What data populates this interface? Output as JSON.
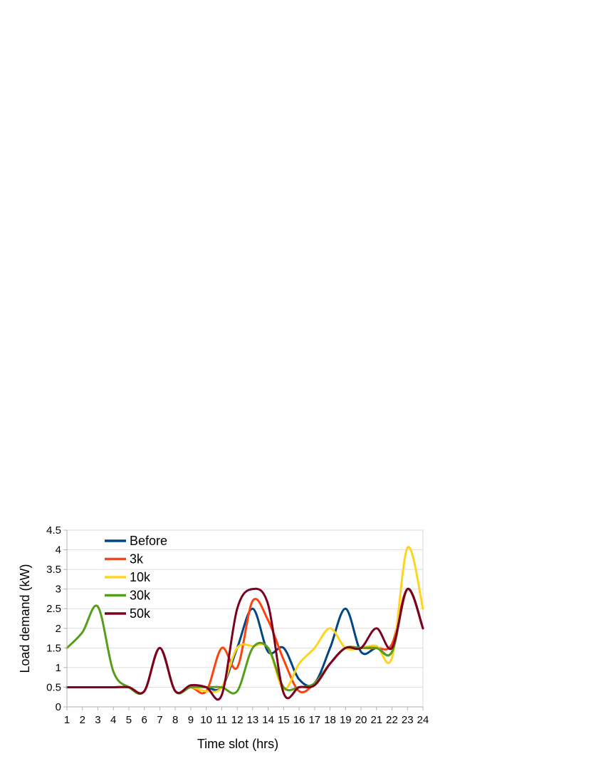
{
  "chart_data": {
    "type": "line",
    "x": [
      1,
      2,
      3,
      4,
      5,
      6,
      7,
      8,
      9,
      10,
      11,
      12,
      13,
      14,
      15,
      16,
      17,
      18,
      19,
      20,
      21,
      22,
      23,
      24
    ],
    "xlabel": "Time slot (hrs)",
    "ylabel": "Load demand (kW)",
    "xlim": [
      1,
      24
    ],
    "ylim": [
      0,
      4.5
    ],
    "xticks": [
      "1",
      "2",
      "3",
      "4",
      "5",
      "6",
      "7",
      "8",
      "9",
      "10",
      "11",
      "12",
      "13",
      "14",
      "15",
      "16",
      "17",
      "18",
      "19",
      "20",
      "21",
      "22",
      "23",
      "24"
    ],
    "yticks": [
      "0",
      "0.5",
      "1",
      "1.5",
      "2",
      "2.5",
      "3",
      "3.5",
      "4",
      "4.5"
    ],
    "grid": "horizontal",
    "legend_position": "top-left",
    "smooth": true,
    "series": [
      {
        "name": "Before",
        "color": "#004586",
        "values": [
          0.5,
          0.5,
          0.5,
          0.5,
          0.5,
          0.4,
          1.5,
          0.4,
          0.55,
          0.5,
          0.5,
          1.5,
          2.5,
          1.4,
          1.5,
          0.7,
          0.6,
          1.5,
          2.5,
          1.4,
          1.5,
          1.4,
          3.0,
          2.0
        ]
      },
      {
        "name": "3k",
        "color": "#ff420e",
        "values": [
          0.5,
          0.5,
          0.5,
          0.5,
          0.5,
          0.4,
          1.5,
          0.4,
          0.5,
          0.4,
          1.5,
          1.0,
          2.7,
          2.2,
          1.2,
          0.4,
          0.6,
          1.1,
          1.5,
          1.5,
          1.5,
          1.6,
          3.0,
          2.0
        ]
      },
      {
        "name": "10k",
        "color": "#ffd320",
        "values": [
          0.5,
          0.5,
          0.5,
          0.5,
          0.5,
          0.4,
          1.5,
          0.4,
          0.5,
          0.4,
          0.5,
          1.5,
          1.55,
          1.5,
          0.45,
          1.1,
          1.5,
          2.0,
          1.5,
          1.5,
          1.55,
          1.25,
          4.05,
          2.5
        ]
      },
      {
        "name": "30k",
        "color": "#579d1c",
        "values": [
          1.5,
          1.9,
          2.55,
          0.9,
          0.5,
          0.4,
          1.5,
          0.4,
          0.5,
          0.5,
          0.5,
          0.4,
          1.5,
          1.5,
          0.5,
          0.5,
          0.6,
          1.1,
          1.5,
          1.5,
          1.5,
          1.4,
          3.0,
          2.0
        ]
      },
      {
        "name": "50k",
        "color": "#7e0021",
        "values": [
          0.5,
          0.5,
          0.5,
          0.5,
          0.5,
          0.4,
          1.5,
          0.4,
          0.55,
          0.5,
          0.3,
          2.5,
          3.0,
          2.6,
          0.35,
          0.5,
          0.55,
          1.1,
          1.5,
          1.5,
          2.0,
          1.5,
          3.0,
          2.0
        ]
      }
    ]
  }
}
